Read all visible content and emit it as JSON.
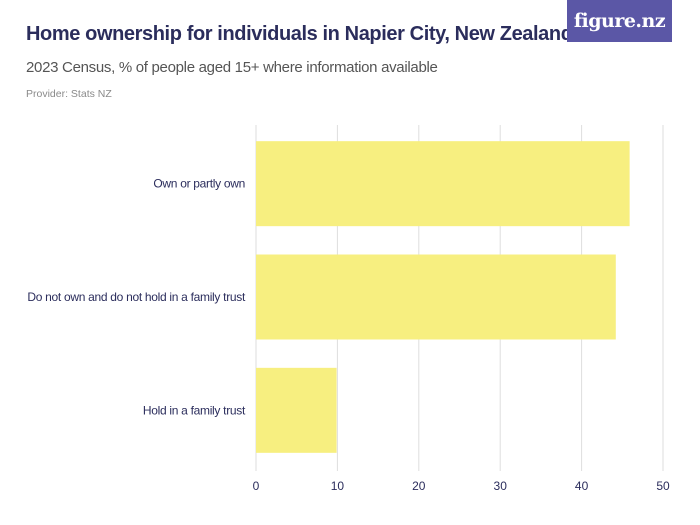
{
  "header": {
    "title": "Home ownership for individuals in Napier City, New Zealand",
    "subtitle": "2023 Census, % of people aged 15+ where information available",
    "provider": "Provider: Stats NZ"
  },
  "brand": {
    "logo_text": "figure.nz",
    "logo_color": "#5b57a6"
  },
  "colors": {
    "bar": "#f7ef80",
    "gridline": "#dedede",
    "axis_text": "#2b2d5c"
  },
  "chart_data": {
    "type": "bar",
    "orientation": "horizontal",
    "title": "Home ownership for individuals in Napier City, New Zealand",
    "subtitle": "2023 Census, % of people aged 15+ where information available",
    "categories": [
      "Own or partly own",
      "Do not own and do not hold in a family trust",
      "Hold in a family trust"
    ],
    "values": [
      45.9,
      44.2,
      9.9
    ],
    "xlim": [
      0,
      50
    ],
    "xticks": [
      0,
      10,
      20,
      30,
      40,
      50
    ],
    "xlabel": "",
    "ylabel": "",
    "grid": true,
    "legend": "none"
  }
}
